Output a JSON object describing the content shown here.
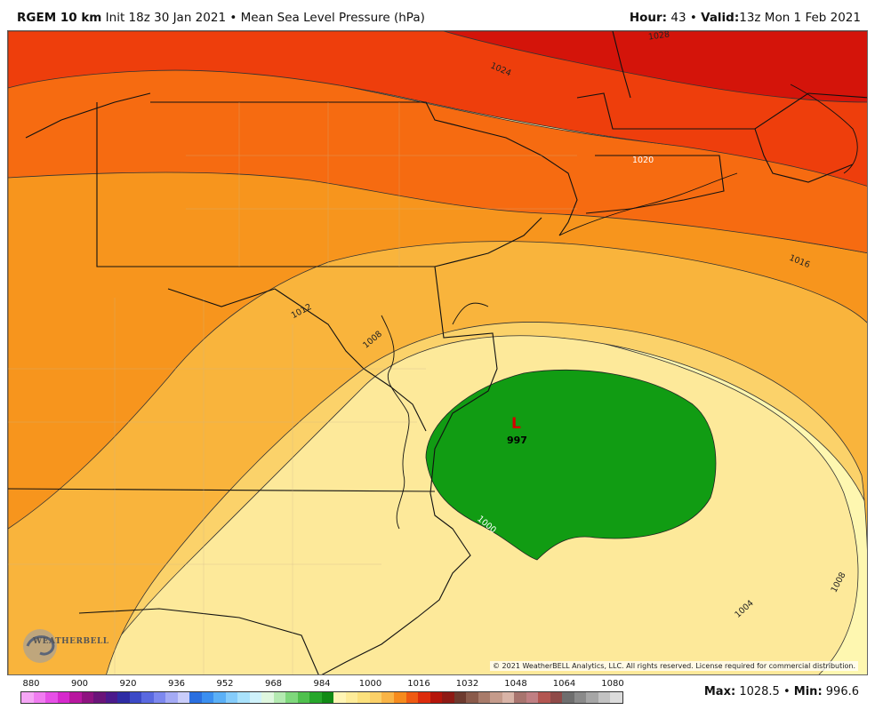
{
  "header": {
    "model": "RGEM 10 km",
    "init": "Init 18z 30 Jan 2021",
    "separator": "•",
    "field": "Mean Sea Level Pressure (hPa)",
    "hour_label": "Hour:",
    "hour_value": "43",
    "valid_label": "Valid:",
    "valid_value": "13z Mon 1 Feb 2021"
  },
  "map": {
    "low_center": {
      "symbol": "L",
      "value": "997"
    },
    "isobar_labels": [
      "1028",
      "1024",
      "1020",
      "1016",
      "1012",
      "1008",
      "1008",
      "1004",
      "1000"
    ],
    "copyright": "© 2021 WeatherBELL Analytics, LLC. All rights reserved. License required for commercial distribution.",
    "logo_text": "WEATHERBELL",
    "colors": {
      "ocean_pale": "#fef7b0",
      "pale_yellow": "#fde99a",
      "light_orange": "#fbd26a",
      "gold": "#f9b43c",
      "orange": "#f7951d",
      "dark_orange": "#f66b11",
      "red_orange": "#ee3e0c",
      "red": "#d4140a",
      "low_green": "#119c13"
    }
  },
  "legend": {
    "ticks": [
      "880",
      "900",
      "920",
      "936",
      "952",
      "968",
      "984",
      "1000",
      "1016",
      "1032",
      "1048",
      "1064",
      "1080"
    ],
    "colors": [
      "#f5a6f5",
      "#f07cf0",
      "#e650e6",
      "#d628cc",
      "#b8179f",
      "#8e1380",
      "#6a1479",
      "#4b1a8c",
      "#2e2ca4",
      "#3c4ac7",
      "#5a69e0",
      "#7d88ef",
      "#a4aaf5",
      "#c9ccfa",
      "#2a6fe0",
      "#3b8ff0",
      "#5bb0f7",
      "#85ccfb",
      "#a9e2fc",
      "#cff2fb",
      "#dff7df",
      "#b4eab1",
      "#7fd87c",
      "#4fc04d",
      "#26a62a",
      "#118a15",
      "#fff5b5",
      "#feec99",
      "#fce17d",
      "#fbd068",
      "#f9b446",
      "#f68b1d",
      "#ef5a12",
      "#dd2c0c",
      "#b5150a",
      "#8e1a14",
      "#6d3a2e",
      "#8a5a4a",
      "#a87b6a",
      "#c59b8b",
      "#d9b4a7",
      "#a8746e",
      "#c07f83",
      "#b35651",
      "#8f4a48",
      "#6e6e6e",
      "#8a8a8a",
      "#a6a6a6",
      "#c2c2c2",
      "#dcdcdc"
    ],
    "max_label": "Max",
    "max_value": "1028.5",
    "min_label": "Min",
    "min_value": "996.6"
  }
}
